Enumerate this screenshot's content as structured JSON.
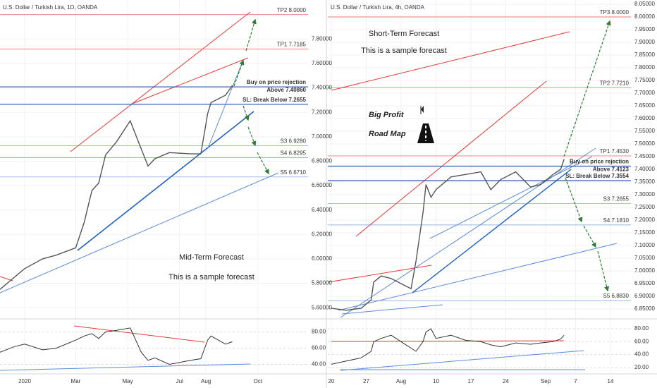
{
  "chart_data": [
    {
      "type": "line",
      "title": "U.S. Dollar / Turkish Lira, 1D, OANDA",
      "color": "#555555",
      "grid": true,
      "x": [
        -29,
        -12,
        0,
        21,
        37,
        60,
        70,
        79,
        87,
        95,
        108,
        124,
        137,
        145,
        153,
        170,
        195,
        207,
        215,
        219,
        236,
        244
      ],
      "values": [
        5.75,
        5.85,
        5.92,
        6.0,
        6.03,
        6.09,
        6.3,
        6.56,
        6.62,
        6.85,
        6.96,
        7.13,
        6.9,
        6.76,
        6.82,
        6.87,
        6.86,
        6.86,
        7.19,
        7.28,
        7.34,
        7.42
      ],
      "xlim": [
        -29,
        333
      ],
      "xticks": [
        {
          "value": 0,
          "label": "2020"
        },
        {
          "value": 60,
          "label": "Mar"
        },
        {
          "value": 121,
          "label": "May"
        },
        {
          "value": 182,
          "label": "Jul"
        },
        {
          "value": 213,
          "label": "Aug"
        },
        {
          "value": 274,
          "label": "Oct"
        }
      ],
      "ylim": [
        5.52,
        8.12
      ],
      "yticks": [
        {
          "value": 5.6,
          "label": "5.60000"
        },
        {
          "value": 5.8,
          "label": "5.80000"
        },
        {
          "value": 6.0,
          "label": "6.00000"
        },
        {
          "value": 6.2,
          "label": "6.20000"
        },
        {
          "value": 6.4,
          "label": "6.40000"
        },
        {
          "value": 6.6,
          "label": "6.60000"
        },
        {
          "value": 6.8,
          "label": "6.80000"
        },
        {
          "value": 7.0,
          "label": "7.00000"
        },
        {
          "value": 7.2,
          "label": "7.20000"
        },
        {
          "value": 7.4,
          "label": "7.40000"
        },
        {
          "value": 7.6,
          "label": "7.60000"
        },
        {
          "value": 7.8,
          "label": "7.80000"
        }
      ],
      "levels": [
        {
          "label": "TP2 8.0000",
          "value": 8.0,
          "color": "#e53935"
        },
        {
          "label": "TP1 7.7185",
          "value": 7.7185,
          "color": "#e53935"
        },
        {
          "heading": "Buy on price rejection",
          "label": "Above 7.40860",
          "value": 7.4086,
          "color": "#1e4fa8"
        },
        {
          "label": "SL: Break Below 7.2655",
          "value": 7.2655,
          "color": "#1e4fa8"
        },
        {
          "label": "S3 6.9280",
          "value": 6.928,
          "color": "#5b8bd6"
        },
        {
          "label": "S4 6.8295",
          "value": 6.8295,
          "color": "#5b8bd6"
        },
        {
          "label": "S5 6.6710",
          "value": 6.671,
          "color": "#5b8bd6"
        }
      ],
      "annotations": [
        "Mid-Term Forecast",
        "This is a sample forecast"
      ],
      "rsi": {
        "values": [
          55,
          62,
          65,
          58,
          60,
          70,
          75,
          78,
          72,
          80,
          82,
          85,
          55,
          45,
          48,
          40,
          45,
          47,
          70,
          75,
          65,
          68
        ],
        "color": "#333333",
        "ylim": [
          30,
          93.6
        ],
        "yticks": [
          {
            "value": 40,
            "label": "40.00"
          },
          {
            "value": 60,
            "label": "60.00"
          },
          {
            "value": 80,
            "label": "80.00"
          }
        ]
      }
    },
    {
      "type": "line",
      "title": "U.S. Dollar / Turkish Lira, 4h, OANDA",
      "color": "#555555",
      "grid": true,
      "x": [
        0,
        3,
        6,
        8,
        8.5,
        10,
        12,
        15,
        16,
        17,
        18.4,
        19,
        20,
        21,
        24,
        27,
        30,
        32,
        34,
        37,
        40,
        42,
        44.5,
        46,
        46.7
      ],
      "values": [
        6.853,
        6.845,
        6.853,
        6.886,
        6.956,
        6.98,
        6.97,
        6.94,
        6.93,
        7.04,
        7.23,
        7.34,
        7.29,
        7.32,
        7.37,
        7.38,
        7.39,
        7.32,
        7.36,
        7.39,
        7.33,
        7.34,
        7.38,
        7.4,
        7.44
      ],
      "xlim": [
        -0.7,
        60.1
      ],
      "xticks": [
        {
          "value": 0,
          "label": "20"
        },
        {
          "value": 7,
          "label": "27"
        },
        {
          "value": 14,
          "label": "Aug"
        },
        {
          "value": 21,
          "label": "10"
        },
        {
          "value": 28,
          "label": "17"
        },
        {
          "value": 35,
          "label": "24"
        },
        {
          "value": 43,
          "label": "Sep"
        },
        {
          "value": 49,
          "label": "7"
        },
        {
          "value": 56,
          "label": "14"
        }
      ],
      "ylim": [
        6.8167,
        8.0667
      ],
      "yticks": [
        {
          "value": 6.85,
          "label": "6.85000"
        },
        {
          "value": 6.9,
          "label": "6.90000"
        },
        {
          "value": 6.95,
          "label": "6.95000"
        },
        {
          "value": 7.0,
          "label": "7.00000"
        },
        {
          "value": 7.05,
          "label": "7.05000"
        },
        {
          "value": 7.1,
          "label": "7.10000"
        },
        {
          "value": 7.15,
          "label": "7.15000"
        },
        {
          "value": 7.2,
          "label": "7.20000"
        },
        {
          "value": 7.25,
          "label": "7.25000"
        },
        {
          "value": 7.3,
          "label": "7.30000"
        },
        {
          "value": 7.35,
          "label": "7.35000"
        },
        {
          "value": 7.4,
          "label": "7.40000"
        },
        {
          "value": 7.45,
          "label": "7.45000"
        },
        {
          "value": 7.5,
          "label": "7.50000"
        },
        {
          "value": 7.55,
          "label": "7.55000"
        },
        {
          "value": 7.6,
          "label": "7.60000"
        },
        {
          "value": 7.65,
          "label": "7.65000"
        },
        {
          "value": 7.7,
          "label": "7.70000"
        },
        {
          "value": 7.75,
          "label": "7.75000"
        },
        {
          "value": 7.8,
          "label": "7.80000"
        },
        {
          "value": 7.85,
          "label": "7.85000"
        },
        {
          "value": 7.9,
          "label": "7.90000"
        },
        {
          "value": 7.95,
          "label": "7.95000"
        },
        {
          "value": 8.0,
          "label": "8.00000"
        },
        {
          "value": 8.05,
          "label": "8.05000"
        }
      ],
      "levels": [
        {
          "label": "TP3 8.0000",
          "value": 8.0,
          "color": "#e53935"
        },
        {
          "label": "TP2 7.7210",
          "value": 7.721,
          "color": "#e53935"
        },
        {
          "label": "TP1 7.4530",
          "value": 7.453,
          "color": "#e53935"
        },
        {
          "heading": "Buy on price rejection",
          "label": "Above 7.4123",
          "value": 7.4123,
          "color": "#1e4fa8"
        },
        {
          "label": "SL: Break Below 7.3554",
          "value": 7.3554,
          "color": "#1e4fa8"
        },
        {
          "label": "S3 7.2655",
          "value": 7.2655,
          "color": "#5b8bd6"
        },
        {
          "label": "S4 7.1810",
          "value": 7.181,
          "color": "#5b8bd6"
        },
        {
          "label": "S5 6.8830",
          "value": 6.883,
          "color": "#5b8bd6"
        }
      ],
      "annotations": [
        "Short-Term Forecast",
        "This is a sample forecast",
        "Big Profit",
        "Road Map"
      ],
      "rsi": {
        "values": [
          25,
          30,
          35,
          45,
          60,
          65,
          70,
          55,
          50,
          45,
          60,
          75,
          80,
          65,
          70,
          62,
          60,
          55,
          52,
          58,
          56,
          58,
          60,
          64,
          70
        ],
        "color": "#333333",
        "ylim": [
          12.3,
          92
        ],
        "yticks": [
          {
            "value": 20,
            "label": "20.00"
          },
          {
            "value": 40,
            "label": "40.00"
          },
          {
            "value": 60,
            "label": "60.00"
          },
          {
            "value": 80,
            "label": "80.00"
          }
        ]
      }
    }
  ]
}
